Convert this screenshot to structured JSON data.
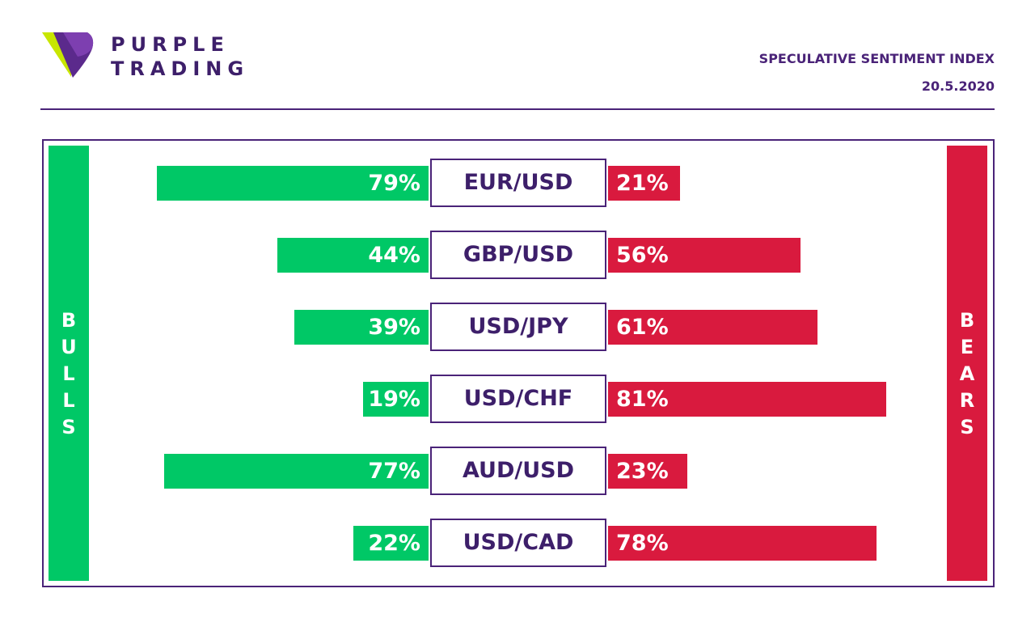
{
  "brand": {
    "line1": "PURPLE",
    "line2": "TRADING"
  },
  "header": {
    "title": "SPECULATIVE SENTIMENT INDEX",
    "date": "20.5.2020"
  },
  "side_labels": {
    "bulls": "BULLS",
    "bears": "BEARS"
  },
  "colors": {
    "bull": "#00c866",
    "bear": "#d91a3e",
    "purple": "#4a2378",
    "lime": "#c8e600"
  },
  "chart_data": {
    "type": "bar",
    "categories": [
      "EUR/USD",
      "GBP/USD",
      "USD/JPY",
      "USD/CHF",
      "AUD/USD",
      "USD/CAD"
    ],
    "series": [
      {
        "name": "BULLS",
        "values": [
          79,
          44,
          39,
          19,
          77,
          22
        ]
      },
      {
        "name": "BEARS",
        "values": [
          21,
          56,
          61,
          81,
          23,
          78
        ]
      }
    ],
    "title": "SPECULATIVE SENTIMENT INDEX",
    "xlabel": "",
    "ylabel": "",
    "unit": "%"
  }
}
